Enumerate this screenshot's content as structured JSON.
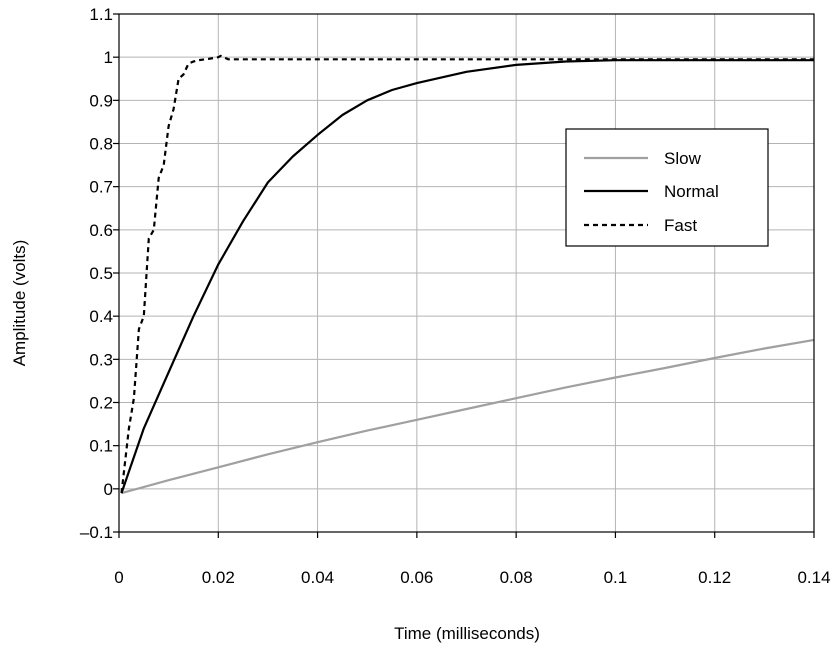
{
  "chart_data": {
    "type": "line",
    "title": "",
    "xlabel": "Time (milliseconds)",
    "ylabel": "Amplitude (volts)",
    "xlim": [
      0,
      0.14
    ],
    "ylim": [
      -0.1,
      1.1
    ],
    "xticks": [
      0,
      0.02,
      0.04,
      0.06,
      0.08,
      0.1,
      0.12,
      0.14
    ],
    "xtick_labels": [
      "0",
      "0.02",
      "0.04",
      "0.06",
      "0.08",
      "0.1",
      "0.12",
      "0.14"
    ],
    "yticks": [
      -0.1,
      0,
      0.1,
      0.2,
      0.3,
      0.4,
      0.5,
      0.6,
      0.7,
      0.8,
      0.9,
      1,
      1.1
    ],
    "ytick_labels": [
      "–0.1",
      "0",
      "0.1",
      "0.2",
      "0.3",
      "0.4",
      "0.5",
      "0.6",
      "0.7",
      "0.8",
      "0.9",
      "1",
      "1.1"
    ],
    "grid": true,
    "legend_position": "right",
    "series": [
      {
        "name": "Slow",
        "color": "#a0a0a0",
        "style": "solid",
        "x": [
          0.0005,
          0.01,
          0.02,
          0.03,
          0.04,
          0.05,
          0.06,
          0.07,
          0.08,
          0.09,
          0.1,
          0.11,
          0.12,
          0.13,
          0.14
        ],
        "y": [
          -0.01,
          0.02,
          0.05,
          0.08,
          0.108,
          0.135,
          0.16,
          0.185,
          0.21,
          0.235,
          0.258,
          0.28,
          0.303,
          0.325,
          0.345
        ]
      },
      {
        "name": "Normal",
        "color": "#000000",
        "style": "solid",
        "x": [
          0.0005,
          0.005,
          0.01,
          0.015,
          0.02,
          0.025,
          0.03,
          0.035,
          0.04,
          0.045,
          0.05,
          0.055,
          0.06,
          0.07,
          0.08,
          0.09,
          0.1,
          0.11,
          0.12,
          0.13,
          0.14
        ],
        "y": [
          -0.01,
          0.14,
          0.27,
          0.4,
          0.52,
          0.62,
          0.71,
          0.77,
          0.82,
          0.866,
          0.9,
          0.924,
          0.94,
          0.966,
          0.982,
          0.99,
          0.993,
          0.993,
          0.993,
          0.993,
          0.993
        ]
      },
      {
        "name": "Fast",
        "color": "#000000",
        "style": "dashed",
        "x": [
          0.0005,
          0.002,
          0.003,
          0.004,
          0.005,
          0.006,
          0.007,
          0.008,
          0.009,
          0.01,
          0.011,
          0.012,
          0.013,
          0.014,
          0.015,
          0.016,
          0.018,
          0.02,
          0.0205,
          0.022,
          0.03,
          0.05,
          0.08,
          0.1,
          0.12,
          0.14
        ],
        "y": [
          -0.01,
          0.14,
          0.21,
          0.37,
          0.4,
          0.58,
          0.6,
          0.72,
          0.75,
          0.84,
          0.88,
          0.95,
          0.96,
          0.985,
          0.99,
          0.993,
          0.996,
          1.0,
          1.003,
          0.995,
          0.995,
          0.995,
          0.995,
          0.995,
          0.995,
          0.995
        ]
      }
    ]
  }
}
